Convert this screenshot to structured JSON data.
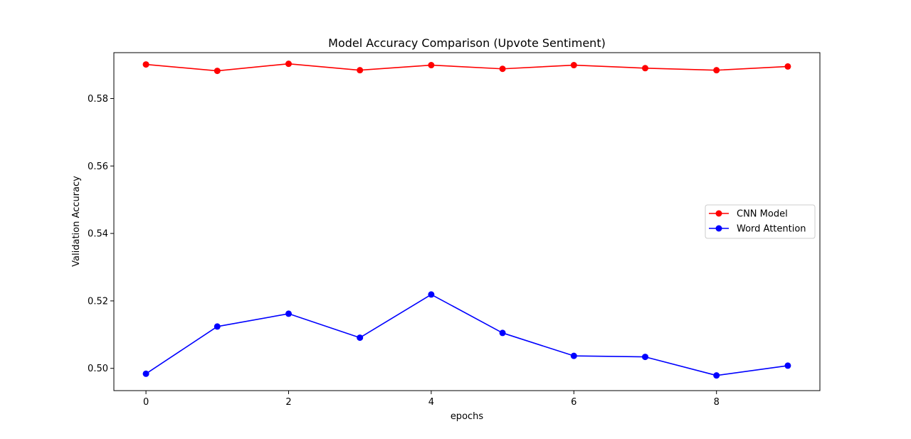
{
  "chart_data": {
    "type": "line",
    "title": "Model Accuracy Comparison (Upvote Sentiment)",
    "xlabel": "epochs",
    "ylabel": "Validation Accuracy",
    "x": [
      0,
      1,
      2,
      3,
      4,
      5,
      6,
      7,
      8,
      9
    ],
    "xlim": [
      -0.45,
      9.45
    ],
    "ylim": [
      0.4934,
      0.5936
    ],
    "xticks": [
      0,
      2,
      4,
      6,
      8
    ],
    "xtick_labels": [
      "0",
      "2",
      "4",
      "6",
      "8"
    ],
    "yticks": [
      0.5,
      0.52,
      0.54,
      0.56,
      0.58
    ],
    "ytick_labels": [
      "0.50",
      "0.52",
      "0.54",
      "0.56",
      "0.58"
    ],
    "grid": false,
    "legend": "center-right",
    "series": [
      {
        "name": "CNN Model",
        "color": "#ff0000",
        "marker": "circle",
        "values": [
          0.5901,
          0.5882,
          0.5903,
          0.5884,
          0.5899,
          0.5888,
          0.5899,
          0.589,
          0.5884,
          0.5895
        ]
      },
      {
        "name": "Word Attention",
        "color": "#0000ff",
        "marker": "circle",
        "values": [
          0.4984,
          0.5124,
          0.5162,
          0.5091,
          0.5219,
          0.5105,
          0.5037,
          0.5034,
          0.4979,
          0.5008
        ]
      }
    ]
  }
}
